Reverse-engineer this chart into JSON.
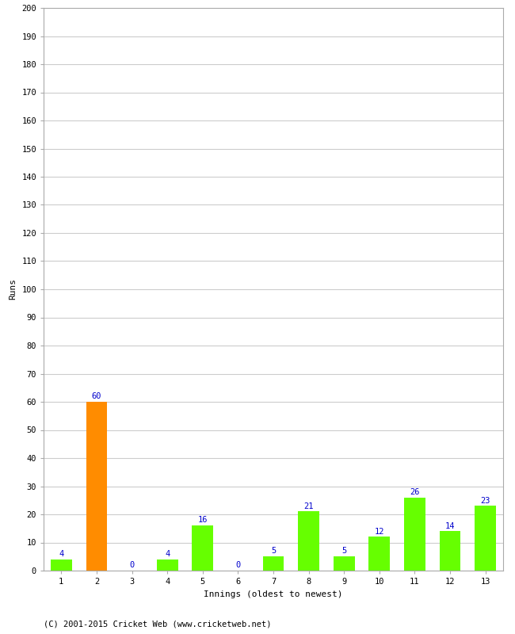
{
  "categories": [
    "1",
    "2",
    "3",
    "4",
    "5",
    "6",
    "7",
    "8",
    "9",
    "10",
    "11",
    "12",
    "13"
  ],
  "values": [
    4,
    60,
    0,
    4,
    16,
    0,
    5,
    21,
    5,
    12,
    26,
    14,
    23
  ],
  "bar_colors": [
    "#66ff00",
    "#ff8c00",
    "#66ff00",
    "#66ff00",
    "#66ff00",
    "#66ff00",
    "#66ff00",
    "#66ff00",
    "#66ff00",
    "#66ff00",
    "#66ff00",
    "#66ff00",
    "#66ff00"
  ],
  "xlabel": "Innings (oldest to newest)",
  "ylabel": "Runs",
  "ylim": [
    0,
    200
  ],
  "yticks": [
    0,
    10,
    20,
    30,
    40,
    50,
    60,
    70,
    80,
    90,
    100,
    110,
    120,
    130,
    140,
    150,
    160,
    170,
    180,
    190,
    200
  ],
  "label_color": "#0000cc",
  "label_fontsize": 7.5,
  "axis_label_fontsize": 8,
  "tick_fontsize": 7.5,
  "background_color": "#ffffff",
  "footer_text": "(C) 2001-2015 Cricket Web (www.cricketweb.net)",
  "footer_fontsize": 7.5,
  "border_color": "#aaaaaa"
}
